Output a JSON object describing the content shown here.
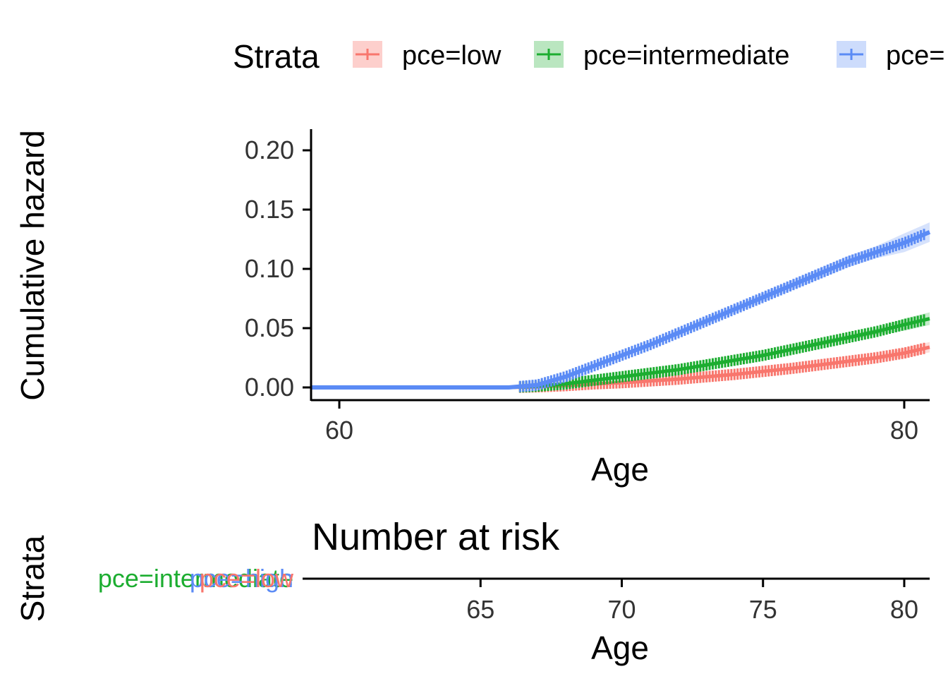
{
  "legend": {
    "title": "Strata",
    "entries": [
      "pce=low",
      "pce=intermediate",
      "pce="
    ]
  },
  "colors": {
    "low": "#F8766D",
    "intermediate": "#1CAD30",
    "high": "#5B8BF5"
  },
  "chart_data": [
    {
      "type": "line",
      "ylabel": "Cumulative hazard",
      "xlabel": "Age",
      "xlim": [
        59,
        80.9
      ],
      "ylim": [
        0,
        0.215
      ],
      "x_ticks": [
        "60",
        "80"
      ],
      "y_ticks": [
        "0.00",
        "0.05",
        "0.10",
        "0.15",
        "0.20"
      ],
      "grid": false,
      "legend_position": "top",
      "series": [
        {
          "name": "pce=low",
          "color": "#F8766D",
          "x": [
            59,
            65,
            66,
            67,
            68,
            69,
            70,
            71,
            72,
            73,
            74,
            75,
            76,
            77,
            78,
            79,
            80,
            80.9
          ],
          "y": [
            0,
            0,
            0,
            0.0005,
            0.0015,
            0.003,
            0.004,
            0.0055,
            0.007,
            0.009,
            0.011,
            0.0135,
            0.016,
            0.019,
            0.022,
            0.025,
            0.029,
            0.034
          ]
        },
        {
          "name": "pce=intermediate",
          "color": "#1CAD30",
          "x": [
            59,
            65,
            66,
            67,
            68,
            69,
            70,
            71,
            72,
            73,
            74,
            75,
            76,
            77,
            78,
            79,
            80,
            80.9
          ],
          "y": [
            0,
            0,
            0,
            0.001,
            0.003,
            0.006,
            0.009,
            0.012,
            0.015,
            0.019,
            0.023,
            0.027,
            0.032,
            0.037,
            0.042,
            0.047,
            0.053,
            0.058
          ]
        },
        {
          "name": "pce=",
          "color": "#5B8BF5",
          "x": [
            59,
            65,
            66,
            67,
            68,
            69,
            70,
            71,
            72,
            73,
            74,
            75,
            76,
            77,
            78,
            79,
            80,
            80.9
          ],
          "y": [
            0,
            0,
            0,
            0.002,
            0.009,
            0.018,
            0.027,
            0.036,
            0.046,
            0.056,
            0.066,
            0.076,
            0.086,
            0.096,
            0.106,
            0.114,
            0.122,
            0.131
          ]
        }
      ]
    },
    {
      "type": "table",
      "title": "Number at risk",
      "ylabel": "Strata",
      "xlabel": "Age",
      "xlim": [
        59,
        80.9
      ],
      "x_ticks": [
        "65",
        "70",
        "75",
        "80"
      ],
      "strata_labels": [
        {
          "text": "pce=intermediate",
          "color": "#1CAD30"
        },
        {
          "text": "pce=high",
          "color": "#5B8BF5"
        },
        {
          "text": "pce=low",
          "color": "#F8766D"
        }
      ]
    }
  ]
}
